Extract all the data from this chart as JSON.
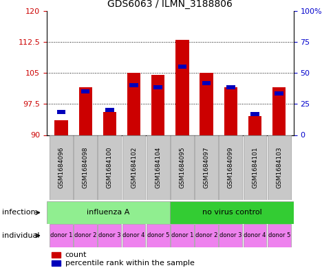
{
  "title": "GDS6063 / ILMN_3188806",
  "samples": [
    "GSM1684096",
    "GSM1684098",
    "GSM1684100",
    "GSM1684102",
    "GSM1684104",
    "GSM1684095",
    "GSM1684097",
    "GSM1684099",
    "GSM1684101",
    "GSM1684103"
  ],
  "red_values": [
    93.5,
    101.5,
    95.5,
    105.0,
    104.5,
    113.0,
    105.0,
    101.5,
    94.5,
    101.5
  ],
  "blue_values": [
    95.5,
    100.5,
    96.0,
    102.0,
    101.5,
    106.5,
    102.5,
    101.5,
    95.0,
    100.0
  ],
  "ymin": 90,
  "ymax": 120,
  "yticks_left": [
    90,
    97.5,
    105,
    112.5,
    120
  ],
  "yticks_right": [
    0,
    25,
    50,
    75,
    100
  ],
  "yticks_right_labels": [
    "0",
    "25",
    "50",
    "75",
    "100%"
  ],
  "individual_labels": [
    "donor 1",
    "donor 2",
    "donor 3",
    "donor 4",
    "donor 5",
    "donor 1",
    "donor 2",
    "donor 3",
    "donor 4",
    "donor 5"
  ],
  "individual_color": "#EE82EE",
  "infect_color_1": "#90EE90",
  "infect_color_2": "#33CC33",
  "bar_color_red": "#CC0000",
  "bar_color_blue": "#0000BB",
  "bar_width": 0.55,
  "background_gray": "#C8C8C8",
  "tick_label_color_left": "#CC0000",
  "tick_label_color_right": "#0000CC"
}
